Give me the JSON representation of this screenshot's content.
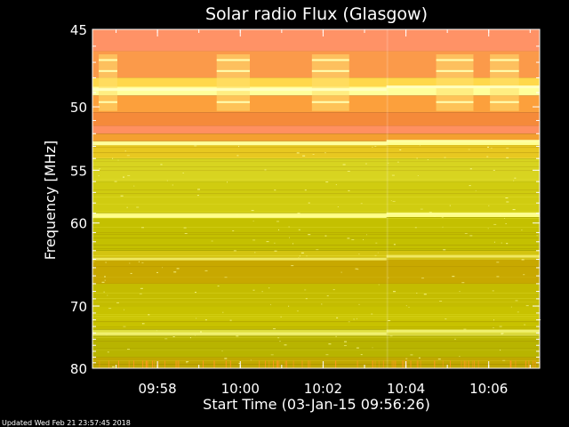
{
  "chart_data": {
    "type": "heatmap",
    "title": "Solar radio Flux (Glasgow)",
    "xlabel": "Start Time (03-Jan-15 09:56:26)",
    "ylabel": "Frequency [MHz]",
    "updated": "Updated Wed Feb 21 23:57:45 2018",
    "x_ticks": [
      "09:58",
      "10:00",
      "10:02",
      "10:04",
      "10:06"
    ],
    "x_tick_minutes": [
      1.57,
      3.57,
      5.57,
      7.57,
      9.57
    ],
    "xlim_minutes": [
      0,
      10.8
    ],
    "y_ticks": [
      45,
      50,
      55,
      60,
      70,
      80
    ],
    "ylim": [
      45,
      80
    ],
    "y_scale": "reciprocal",
    "colors": {
      "low": "#b0b000",
      "mid": "#e0e020",
      "high": "#f08020",
      "peak": "#ffff80",
      "top": "#ff9060"
    },
    "bands": [
      {
        "from": 45.0,
        "to": 46.3,
        "color": "#ff9266"
      },
      {
        "from": 46.3,
        "to": 48.0,
        "color": "#fb9a4a"
      },
      {
        "from": 48.0,
        "to": 48.6,
        "color": "#ffd84a"
      },
      {
        "from": 48.6,
        "to": 49.2,
        "color": "#ffff9a"
      },
      {
        "from": 49.2,
        "to": 50.4,
        "color": "#fca03c"
      },
      {
        "from": 50.4,
        "to": 51.4,
        "color": "#f58a3a"
      },
      {
        "from": 51.4,
        "to": 52.0,
        "color": "#ff9060"
      },
      {
        "from": 52.0,
        "to": 52.6,
        "color": "#f4a030"
      },
      {
        "from": 52.6,
        "to": 52.9,
        "color": "#ffff90"
      },
      {
        "from": 52.9,
        "to": 54.0,
        "color": "#e8c820"
      },
      {
        "from": 54.0,
        "to": 56.0,
        "color": "#d8d420"
      },
      {
        "from": 56.0,
        "to": 59.0,
        "color": "#d0cc10"
      },
      {
        "from": 59.0,
        "to": 59.4,
        "color": "#ffff80"
      },
      {
        "from": 59.4,
        "to": 63.0,
        "color": "#c4c000"
      },
      {
        "from": 63.0,
        "to": 64.0,
        "color": "#d4c410"
      },
      {
        "from": 64.0,
        "to": 67.0,
        "color": "#c8a800"
      },
      {
        "from": 67.0,
        "to": 70.0,
        "color": "#c4bc00"
      },
      {
        "from": 70.0,
        "to": 73.5,
        "color": "#c8c200"
      },
      {
        "from": 73.5,
        "to": 74.5,
        "color": "#e0e040"
      },
      {
        "from": 74.5,
        "to": 78.0,
        "color": "#b8b400"
      },
      {
        "from": 78.0,
        "to": 80.0,
        "color": "#c0a800"
      }
    ],
    "lines": [
      {
        "freq": 48.7,
        "color": "#ffffc0"
      },
      {
        "freq": 52.7,
        "color": "#ffffa0"
      },
      {
        "freq": 59.2,
        "color": "#ffff90"
      },
      {
        "freq": 63.8,
        "color": "#f0e860"
      },
      {
        "freq": 73.9,
        "color": "#f0f070"
      }
    ],
    "discontinuity_minute": 7.1
  }
}
